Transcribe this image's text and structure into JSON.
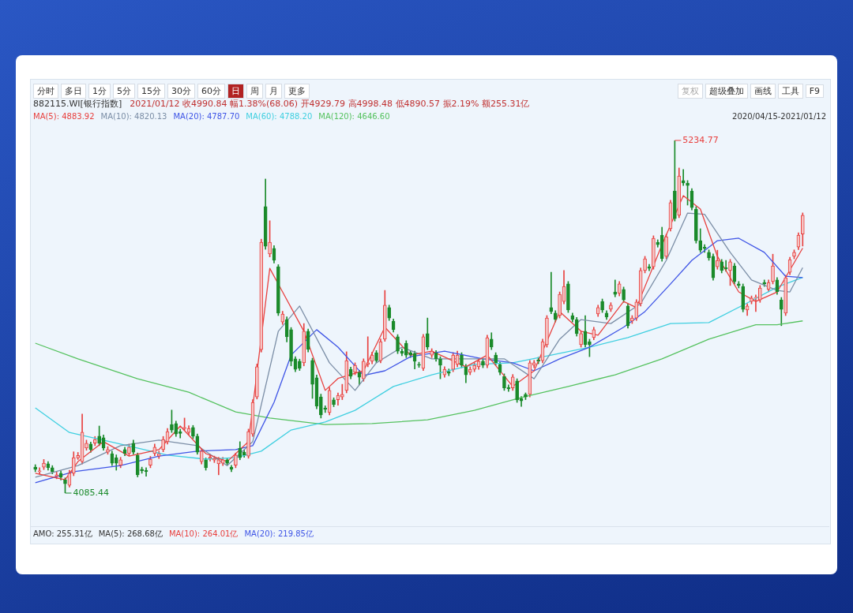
{
  "chart_data": {
    "type": "candlestick",
    "title": "882115.WI[银行指数]",
    "subtitle": "2021/01/12 收4990.84 幅1.38%(68.06) 开4929.79 高4998.48 低4890.57 振2.19% 额255.31亿",
    "categories": [
      null,
      null,
      null,
      null,
      null,
      null,
      null,
      null,
      null,
      null,
      null,
      null,
      null,
      null,
      null,
      null,
      null,
      null,
      null,
      null,
      null,
      null,
      null,
      null,
      null,
      null,
      null,
      null,
      null,
      null,
      null,
      null,
      null,
      null,
      null,
      null,
      null,
      null,
      null,
      null,
      null,
      null,
      null,
      null,
      null,
      null,
      null,
      null,
      null,
      null,
      null,
      null,
      null,
      null,
      null,
      null,
      null,
      null,
      null,
      null,
      null,
      null,
      null,
      null,
      null,
      null,
      null,
      null,
      null,
      null,
      null,
      null,
      null,
      null,
      null,
      null,
      null,
      null,
      null,
      null,
      null,
      null,
      null,
      null,
      null,
      null,
      null,
      null,
      null,
      null,
      null,
      null,
      null,
      null,
      null,
      null,
      null,
      null,
      null,
      null,
      null,
      null,
      null,
      null,
      null,
      null,
      null,
      null,
      null,
      null,
      null,
      null,
      null,
      null,
      null,
      null,
      null,
      null,
      null,
      null,
      null,
      null,
      null,
      null,
      null,
      null,
      null,
      null,
      null,
      null,
      null,
      null,
      null,
      null,
      null,
      null,
      null,
      null,
      null,
      null,
      null,
      null,
      null,
      null,
      null,
      null,
      null,
      null,
      null,
      null,
      null,
      null,
      null,
      null,
      null,
      null,
      null,
      null,
      null,
      null,
      null,
      null,
      null,
      null,
      null,
      null,
      null,
      null,
      null,
      null,
      null,
      null,
      null,
      null,
      null,
      null,
      null,
      null,
      null,
      null,
      null
    ],
    "tick_labels": false,
    "series": [
      {
        "ohlc": [
          [
            4170,
            4178,
            4155,
            4163
          ],
          [
            4155,
            4168,
            4147,
            4158
          ],
          [
            4170,
            4195,
            4162,
            4183
          ],
          [
            4181,
            4188,
            4160,
            4168
          ],
          [
            4168,
            4175,
            4148,
            4155
          ],
          [
            4140,
            4155,
            4132,
            4145
          ],
          [
            4150,
            4158,
            4128,
            4137
          ],
          [
            4129,
            4135,
            4085.44,
            4116
          ],
          [
            4111,
            4160,
            4105,
            4150
          ],
          [
            4150,
            4220,
            4142,
            4201
          ],
          [
            4200,
            4218,
            4195,
            4208
          ],
          [
            4188,
            4343,
            4180,
            4284
          ],
          [
            4232,
            4258,
            4225,
            4248
          ],
          [
            4245,
            4252,
            4218,
            4227
          ],
          [
            4248,
            4270,
            4240,
            4260
          ],
          [
            4271,
            4304,
            4240,
            4248
          ],
          [
            4266,
            4275,
            4225,
            4232
          ],
          [
            4219,
            4237,
            4212,
            4227
          ],
          [
            4214,
            4222,
            4175,
            4183
          ],
          [
            4201,
            4210,
            4160,
            4183
          ],
          [
            4176,
            4202,
            4168,
            4194
          ],
          [
            4227,
            4235,
            4207,
            4214
          ],
          [
            4214,
            4245,
            4207,
            4235
          ],
          [
            4248,
            4258,
            4212,
            4219
          ],
          [
            4209,
            4216,
            4138,
            4145
          ],
          [
            4163,
            4170,
            4150,
            4158
          ],
          [
            4160,
            4168,
            4140,
            4155
          ],
          [
            4176,
            4205,
            4168,
            4196
          ],
          [
            4214,
            4245,
            4207,
            4235
          ],
          [
            4206,
            4222,
            4198,
            4214
          ],
          [
            4227,
            4270,
            4220,
            4260
          ],
          [
            4253,
            4296,
            4245,
            4286
          ],
          [
            4309,
            4356,
            4283,
            4291
          ],
          [
            4312,
            4320,
            4270,
            4278
          ],
          [
            4286,
            4294,
            4265,
            4280
          ],
          [
            4296,
            4330,
            4290,
            4299
          ],
          [
            4283,
            4305,
            4275,
            4296
          ],
          [
            4299,
            4306,
            4263,
            4271
          ],
          [
            4271,
            4278,
            4212,
            4219
          ],
          [
            4188,
            4230,
            4180,
            4222
          ],
          [
            4194,
            4200,
            4160,
            4168
          ],
          [
            4198,
            4212,
            4190,
            4203
          ],
          [
            4193,
            4206,
            4185,
            4198
          ],
          [
            4181,
            4202,
            4145,
            4194
          ],
          [
            4183,
            4202,
            4175,
            4194
          ],
          [
            4194,
            4200,
            4176,
            4183
          ],
          [
            4170,
            4176,
            4155,
            4163
          ],
          [
            4176,
            4216,
            4168,
            4209
          ],
          [
            4232,
            4253,
            4194,
            4201
          ],
          [
            4219,
            4226,
            4202,
            4209
          ],
          [
            4206,
            4294,
            4199,
            4286
          ],
          [
            4278,
            4390,
            4270,
            4381
          ],
          [
            4399,
            4506,
            4392,
            4497
          ],
          [
            4553,
            4913,
            4545,
            4903
          ],
          [
            5019,
            5109,
            4880,
            4890
          ],
          [
            4865,
            4973,
            4855,
            4903
          ],
          [
            4883,
            4892,
            4835,
            4844
          ],
          [
            4823,
            4830,
            4664,
            4672
          ],
          [
            4643,
            4678,
            4635,
            4669
          ],
          [
            4651,
            4660,
            4578,
            4595
          ],
          [
            4618,
            4625,
            4500,
            4515
          ],
          [
            4523,
            4530,
            4481,
            4489
          ],
          [
            4515,
            4522,
            4485,
            4492
          ],
          [
            4510,
            4638,
            4500,
            4613
          ],
          [
            4613,
            4620,
            4545,
            4554
          ],
          [
            4518,
            4525,
            4394,
            4440
          ],
          [
            4461,
            4470,
            4360,
            4369
          ],
          [
            4399,
            4408,
            4330,
            4340
          ],
          [
            4363,
            4370,
            4348,
            4358
          ],
          [
            4348,
            4430,
            4340,
            4420
          ],
          [
            4389,
            4396,
            4367,
            4374
          ],
          [
            4390,
            4412,
            4372,
            4404
          ],
          [
            4399,
            4440,
            4390,
            4407
          ],
          [
            4420,
            4546,
            4412,
            4517
          ],
          [
            4489,
            4496,
            4458,
            4466
          ],
          [
            4479,
            4510,
            4471,
            4502
          ],
          [
            4479,
            4486,
            4438,
            4463
          ],
          [
            4458,
            4523,
            4450,
            4515
          ],
          [
            4505,
            4595,
            4497,
            4510
          ],
          [
            4515,
            4545,
            4507,
            4535
          ],
          [
            4543,
            4550,
            4510,
            4517
          ],
          [
            4517,
            4588,
            4510,
            4579
          ],
          [
            4587,
            4746,
            4580,
            4698
          ],
          [
            4690,
            4698,
            4648,
            4656
          ],
          [
            4646,
            4653,
            4610,
            4618
          ],
          [
            4595,
            4602,
            4540,
            4548
          ],
          [
            4548,
            4556,
            4533,
            4541
          ],
          [
            4574,
            4582,
            4527,
            4535
          ],
          [
            4543,
            4550,
            4527,
            4535
          ],
          [
            4541,
            4548,
            4490,
            4515
          ],
          [
            4505,
            4512,
            4495,
            4502
          ],
          [
            4492,
            4603,
            4485,
            4595
          ],
          [
            4605,
            4656,
            4553,
            4561
          ],
          [
            4535,
            4556,
            4527,
            4548
          ],
          [
            4543,
            4550,
            4515,
            4523
          ],
          [
            4523,
            4530,
            4458,
            4502
          ],
          [
            4471,
            4497,
            4463,
            4489
          ],
          [
            4482,
            4490,
            4468,
            4476
          ],
          [
            4489,
            4543,
            4481,
            4535
          ],
          [
            4505,
            4548,
            4497,
            4535
          ],
          [
            4535,
            4543,
            4494,
            4502
          ],
          [
            4497,
            4505,
            4445,
            4471
          ],
          [
            4479,
            4497,
            4471,
            4489
          ],
          [
            4489,
            4510,
            4481,
            4502
          ],
          [
            4497,
            4523,
            4489,
            4515
          ],
          [
            4515,
            4523,
            4494,
            4502
          ],
          [
            4502,
            4600,
            4494,
            4592
          ],
          [
            4587,
            4608,
            4553,
            4561
          ],
          [
            4535,
            4543,
            4502,
            4510
          ],
          [
            4505,
            4512,
            4471,
            4479
          ],
          [
            4466,
            4474,
            4420,
            4428
          ],
          [
            4430,
            4438,
            4417,
            4425
          ],
          [
            4428,
            4472,
            4420,
            4464
          ],
          [
            4451,
            4458,
            4381,
            4389
          ],
          [
            4394,
            4400,
            4368,
            4386
          ],
          [
            4407,
            4412,
            4390,
            4399
          ],
          [
            4407,
            4518,
            4399,
            4510
          ],
          [
            4502,
            4518,
            4494,
            4510
          ],
          [
            4520,
            4528,
            4507,
            4515
          ],
          [
            4517,
            4587,
            4510,
            4579
          ],
          [
            4569,
            4664,
            4561,
            4656
          ],
          [
            4690,
            4805,
            4670,
            4677
          ],
          [
            4672,
            4680,
            4643,
            4651
          ],
          [
            4664,
            4741,
            4656,
            4733
          ],
          [
            4710,
            4811,
            4702,
            4759
          ],
          [
            4767,
            4775,
            4674,
            4682
          ],
          [
            4664,
            4672,
            4643,
            4651
          ],
          [
            4651,
            4658,
            4597,
            4605
          ],
          [
            4569,
            4613,
            4561,
            4605
          ],
          [
            4613,
            4664,
            4561,
            4569
          ],
          [
            4579,
            4587,
            4530,
            4569
          ],
          [
            4592,
            4626,
            4585,
            4618
          ],
          [
            4669,
            4698,
            4661,
            4690
          ],
          [
            4710,
            4718,
            4674,
            4682
          ],
          [
            4672,
            4680,
            4651,
            4659
          ],
          [
            4685,
            4706,
            4677,
            4698
          ],
          [
            4741,
            4780,
            4725,
            4733
          ],
          [
            4736,
            4775,
            4728,
            4767
          ],
          [
            4749,
            4757,
            4707,
            4715
          ],
          [
            4695,
            4703,
            4623,
            4631
          ],
          [
            4646,
            4664,
            4638,
            4656
          ],
          [
            4656,
            4716,
            4648,
            4708
          ],
          [
            4703,
            4819,
            4695,
            4811
          ],
          [
            4811,
            4857,
            4803,
            4849
          ],
          [
            4823,
            4831,
            4810,
            4818
          ],
          [
            4823,
            4924,
            4815,
            4916
          ],
          [
            4903,
            4911,
            4887,
            4895
          ],
          [
            4926,
            4952,
            4841,
            4849
          ],
          [
            4857,
            4929,
            4849,
            4921
          ],
          [
            4947,
            5040,
            4939,
            5032
          ],
          [
            5070,
            5234.77,
            4972,
            4980
          ],
          [
            4991,
            5145,
            4983,
            5119
          ],
          [
            5104,
            5140,
            5088,
            5096
          ],
          [
            5096,
            5104,
            5024,
            5088
          ],
          [
            5070,
            5078,
            5008,
            5016
          ],
          [
            5011,
            5019,
            4900,
            4908
          ],
          [
            4908,
            4947,
            4870,
            4877
          ],
          [
            4887,
            4895,
            4870,
            4883
          ],
          [
            4870,
            4878,
            4844,
            4852
          ],
          [
            4857,
            4865,
            4779,
            4787
          ],
          [
            4823,
            4877,
            4815,
            4844
          ],
          [
            4839,
            4847,
            4803,
            4811
          ],
          [
            4820,
            4844,
            4808,
            4816
          ],
          [
            4811,
            4847,
            4762,
            4839
          ],
          [
            4826,
            4834,
            4767,
            4775
          ],
          [
            4767,
            4775,
            4754,
            4762
          ],
          [
            4759,
            4767,
            4676,
            4684
          ],
          [
            4682,
            4703,
            4664,
            4695
          ],
          [
            4710,
            4728,
            4702,
            4721
          ],
          [
            4721,
            4731,
            4677,
            4723
          ],
          [
            4715,
            4762,
            4707,
            4754
          ],
          [
            4772,
            4780,
            4759,
            4767
          ],
          [
            4749,
            4780,
            4741,
            4772
          ],
          [
            4775,
            4864,
            4767,
            4826
          ],
          [
            4780,
            4788,
            4733,
            4741
          ],
          [
            4715,
            4723,
            4631,
            4684
          ],
          [
            4672,
            4795,
            4664,
            4787
          ],
          [
            4805,
            4854,
            4797,
            4846
          ],
          [
            4857,
            4878,
            4849,
            4870
          ],
          [
            4887,
            4934,
            4879,
            4926
          ],
          [
            4929.79,
            4998.48,
            4890.57,
            4990.84
          ]
        ]
      },
      {
        "type": "line",
        "name": "MA(5): 4883.92",
        "color": "#e8413f",
        "values": [
          4150,
          null,
          null,
          null,
          null,
          null,
          null,
          4129,
          null,
          null,
          4188,
          null,
          null,
          null,
          null,
          null,
          4253,
          null,
          null,
          null,
          null,
          null,
          4206,
          null,
          null,
          null,
          null,
          null,
          null,
          4227,
          null,
          null,
          null,
          null,
          4304,
          null,
          null,
          null,
          null,
          null,
          4214,
          null,
          null,
          null,
          null,
          4188,
          null,
          null,
          null,
          null,
          4253,
          null,
          null,
          null,
          null,
          4818,
          null,
          null,
          4741,
          null,
          null,
          null,
          null,
          4613,
          null,
          null,
          null,
          null,
          4420,
          null,
          null,
          4459,
          null,
          null,
          null,
          null,
          null,
          4484,
          null,
          null,
          null,
          null,
          4626,
          null,
          null,
          null,
          null,
          null,
          4535,
          null,
          null,
          null,
          null,
          4548,
          null,
          null,
          null,
          null,
          null,
          null,
          null,
          4497,
          null,
          null,
          null,
          null,
          4535,
          null,
          null,
          null,
          null,
          null,
          4433,
          null,
          null,
          null,
          null,
          4484,
          null,
          null,
          null,
          null,
          null,
          4677,
          null,
          null,
          null,
          null,
          4613,
          null,
          null,
          null,
          4600,
          null,
          null,
          null,
          null,
          null,
          4710,
          null,
          null,
          4690,
          null,
          null,
          null,
          null,
          null,
          4895,
          null,
          null,
          null,
          null,
          5055,
          null,
          null,
          null,
          5011,
          null,
          null,
          null,
          4857,
          null,
          null,
          null,
          null,
          4741,
          null,
          null,
          null,
          4710,
          null,
          null,
          null,
          null,
          4741,
          null,
          null,
          null,
          null,
          null,
          4883.92
        ]
      },
      {
        "type": "line",
        "name": "MA(10): 4820.13",
        "color": "#7b8ea6",
        "values": [
          4137,
          null,
          null,
          null,
          null,
          null,
          null,
          null,
          null,
          null,
          4175,
          null,
          null,
          null,
          null,
          null,
          null,
          null,
          null,
          null,
          4240,
          null,
          null,
          null,
          null,
          null,
          null,
          null,
          null,
          4258,
          null,
          null,
          null,
          null,
          null,
          null,
          null,
          null,
          4240,
          null,
          null,
          null,
          null,
          null,
          null,
          4175,
          null,
          null,
          null,
          null,
          null,
          4253,
          null,
          null,
          null,
          null,
          null,
          4613,
          null,
          null,
          null,
          null,
          4695,
          null,
          null,
          null,
          null,
          null,
          null,
          4510,
          null,
          null,
          null,
          null,
          null,
          4420,
          null,
          null,
          null,
          null,
          4510,
          null,
          null,
          null,
          null,
          null,
          4561,
          null,
          null,
          null,
          null,
          null,
          null,
          4523,
          null,
          null,
          null,
          null,
          null,
          null,
          null,
          null,
          null,
          4523,
          null,
          null,
          null,
          null,
          null,
          null,
          4523,
          null,
          null,
          null,
          null,
          null,
          null,
          4458,
          null,
          null,
          null,
          null,
          null,
          4587,
          null,
          null,
          null,
          null,
          4651,
          null,
          null,
          null,
          null,
          null,
          null,
          4638,
          null,
          null,
          null,
          null,
          null,
          null,
          4703,
          null,
          null,
          null,
          null,
          null,
          4844,
          null,
          null,
          null,
          null,
          4998,
          null,
          null,
          null,
          4994,
          null,
          null,
          null,
          null,
          null,
          4870,
          null,
          null,
          null,
          null,
          4780,
          null,
          null,
          null,
          null,
          null,
          4746,
          null,
          null,
          4741,
          null,
          null,
          4820.13
        ]
      },
      {
        "type": "line",
        "name": "MA(20): 4787.70",
        "color": "#3f55e6",
        "values": [
          4119,
          null,
          null,
          null,
          null,
          null,
          null,
          null,
          null,
          4155,
          null,
          null,
          null,
          null,
          null,
          null,
          null,
          null,
          null,
          null,
          4175,
          null,
          null,
          null,
          null,
          null,
          null,
          null,
          null,
          4206,
          null,
          null,
          null,
          null,
          null,
          null,
          null,
          null,
          4222,
          null,
          null,
          null,
          null,
          null,
          null,
          null,
          null,
          4227,
          null,
          null,
          null,
          4240,
          null,
          null,
          null,
          null,
          4381,
          null,
          null,
          null,
          4535,
          null,
          null,
          null,
          null,
          null,
          4618,
          null,
          null,
          null,
          null,
          4561,
          null,
          null,
          null,
          null,
          null,
          4469,
          null,
          null,
          null,
          null,
          4484,
          null,
          null,
          null,
          null,
          null,
          4530,
          null,
          null,
          null,
          null,
          null,
          null,
          null,
          4548,
          null,
          null,
          null,
          null,
          null,
          null,
          null,
          null,
          4523,
          null,
          null,
          null,
          null,
          null,
          null,
          4510,
          null,
          null,
          null,
          null,
          4484,
          null,
          null,
          null,
          null,
          null,
          4523,
          null,
          null,
          null,
          null,
          null,
          null,
          4561,
          null,
          null,
          null,
          null,
          null,
          null,
          null,
          4626,
          null,
          null,
          null,
          null,
          4677,
          null,
          null,
          null,
          null,
          null,
          4767,
          null,
          null,
          null,
          null,
          4844,
          null,
          null,
          null,
          null,
          null,
          4908,
          null,
          null,
          null,
          null,
          4916,
          null,
          null,
          null,
          null,
          null,
          4870,
          null,
          null,
          null,
          null,
          4792,
          null,
          null,
          null,
          4787.7
        ]
      },
      {
        "type": "line",
        "name": "MA(60): 4788.20",
        "color": "#3fcfe0",
        "values": [
          4363,
          null,
          null,
          null,
          null,
          null,
          null,
          null,
          4283,
          null,
          null,
          null,
          null,
          null,
          null,
          null,
          null,
          null,
          null,
          null,
          4245,
          null,
          null,
          null,
          null,
          null,
          null,
          null,
          null,
          null,
          null,
          4209,
          null,
          null,
          null,
          null,
          null,
          null,
          null,
          null,
          4196,
          null,
          null,
          null,
          null,
          null,
          null,
          4201,
          null,
          null,
          null,
          null,
          null,
          4222,
          null,
          null,
          null,
          null,
          null,
          null,
          4291,
          null,
          null,
          null,
          null,
          null,
          null,
          null,
          4317,
          null,
          null,
          null,
          null,
          null,
          null,
          4355,
          null,
          null,
          null,
          null,
          null,
          null,
          null,
          null,
          4433,
          null,
          null,
          null,
          null,
          null,
          null,
          null,
          null,
          4471,
          null,
          null,
          null,
          null,
          null,
          null,
          null,
          null,
          null,
          4505,
          null,
          null,
          null,
          null,
          null,
          null,
          null,
          null,
          4510,
          null,
          null,
          null,
          null,
          null,
          null,
          null,
          null,
          4535,
          null,
          null,
          null,
          null,
          null,
          null,
          null,
          null,
          4561,
          null,
          null,
          null,
          null,
          null,
          null,
          null,
          null,
          4592,
          null,
          null,
          null,
          null,
          null,
          null,
          null,
          null,
          null,
          4638,
          null,
          null,
          null,
          null,
          null,
          null,
          null,
          null,
          4641,
          null,
          null,
          null,
          null,
          null,
          null,
          null,
          null,
          4705,
          null,
          null,
          null,
          null,
          null,
          null,
          4757,
          null,
          null,
          null,
          null,
          null,
          4788.2
        ]
      },
      {
        "type": "line",
        "name": "MA(120): 4646.60",
        "color": "#55c25f",
        "values": [
          4574,
          null,
          null,
          null,
          null,
          null,
          null,
          null,
          null,
          null,
          4523,
          null,
          null,
          null,
          null,
          null,
          null,
          null,
          null,
          null,
          null,
          null,
          null,
          null,
          4458,
          null,
          null,
          null,
          null,
          null,
          null,
          null,
          null,
          null,
          null,
          null,
          4414,
          null,
          null,
          null,
          null,
          null,
          null,
          null,
          null,
          null,
          null,
          4350,
          null,
          null,
          null,
          null,
          null,
          null,
          null,
          4330,
          null,
          null,
          null,
          null,
          null,
          null,
          null,
          null,
          null,
          null,
          null,
          null,
          4309,
          null,
          null,
          null,
          null,
          null,
          null,
          null,
          null,
          null,
          null,
          4312,
          null,
          null,
          null,
          null,
          null,
          null,
          null,
          null,
          null,
          null,
          null,
          null,
          4324,
          null,
          null,
          null,
          null,
          null,
          null,
          null,
          null,
          null,
          null,
          4355,
          null,
          null,
          null,
          null,
          null,
          null,
          null,
          null,
          null,
          null,
          4397,
          null,
          null,
          null,
          null,
          null,
          null,
          null,
          null,
          null,
          null,
          4433,
          null,
          null,
          null,
          null,
          null,
          null,
          null,
          null,
          null,
          null,
          4471,
          null,
          null,
          null,
          null,
          null,
          null,
          null,
          null,
          null,
          null,
          4523,
          null,
          null,
          null,
          null,
          null,
          null,
          null,
          null,
          null,
          null,
          4587,
          null,
          null,
          null,
          null,
          null,
          null,
          null,
          null,
          null,
          null,
          4634,
          null,
          null,
          null,
          null,
          4634,
          null,
          null,
          null,
          null,
          null,
          4646.6
        ]
      }
    ],
    "annotations": [
      "5234.77",
      "4085.44",
      "分时",
      "多日",
      "1分",
      "5分",
      "15分",
      "30分",
      "60分",
      "日",
      "周",
      "月",
      "更多",
      "复权",
      "超级叠加",
      "画线",
      "工具",
      "F9",
      "2020/04/15-2021/01/12",
      "AMO: 255.31亿",
      "MA(5): 268.68亿",
      "MA(10): 264.01亿",
      "MA(20): 219.85亿"
    ]
  }
}
